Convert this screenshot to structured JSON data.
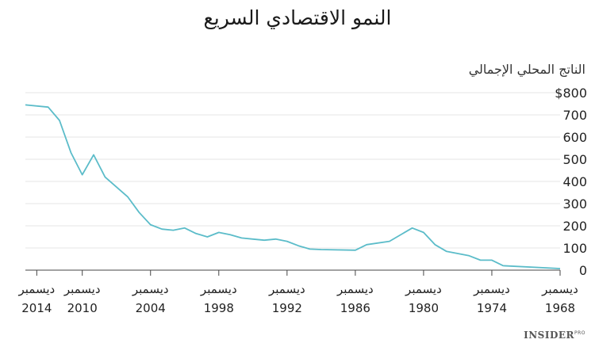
{
  "chart_data": {
    "type": "line",
    "title": "النمو الاقتصادي السريع",
    "ylabel": "الناتج المحلي الإجمالي",
    "xlabel": "",
    "x_reversed": true,
    "ylim": [
      0,
      800
    ],
    "xlim": [
      1968,
      2015
    ],
    "y_ticks": [
      {
        "value": 800,
        "label": "$800"
      },
      {
        "value": 700,
        "label": "700"
      },
      {
        "value": 600,
        "label": "600"
      },
      {
        "value": 500,
        "label": "500"
      },
      {
        "value": 400,
        "label": "400"
      },
      {
        "value": 300,
        "label": "300"
      },
      {
        "value": 200,
        "label": "200"
      },
      {
        "value": 100,
        "label": "100"
      },
      {
        "value": 0,
        "label": "0"
      }
    ],
    "x_ticks": [
      {
        "value": 2014,
        "month": "ديسمبر",
        "year": "2014"
      },
      {
        "value": 2010,
        "month": "ديسمبر",
        "year": "2010"
      },
      {
        "value": 2004,
        "month": "ديسمبر",
        "year": "2004"
      },
      {
        "value": 1998,
        "month": "ديسمبر",
        "year": "1998"
      },
      {
        "value": 1992,
        "month": "ديسمبر",
        "year": "1992"
      },
      {
        "value": 1986,
        "month": "ديسمبر",
        "year": "1986"
      },
      {
        "value": 1980,
        "month": "ديسمبر",
        "year": "1980"
      },
      {
        "value": 1974,
        "month": "ديسمبر",
        "year": "1974"
      },
      {
        "value": 1968,
        "month": "ديسمبر",
        "year": "1968"
      }
    ],
    "grid": true,
    "line_color": "#5bbcc9",
    "series": [
      {
        "x": [
          2015,
          2013,
          2012,
          2011,
          2010,
          2009,
          2008,
          2006,
          2005,
          2004,
          2003,
          2002,
          2001,
          2000,
          1999,
          1998,
          1997,
          1996,
          1995,
          1994,
          1993,
          1992,
          1991,
          1990,
          1989,
          1986,
          1985,
          1983,
          1981,
          1980,
          1979,
          1978,
          1976,
          1975,
          1974,
          1973,
          1968
        ],
        "y": [
          745,
          735,
          675,
          530,
          430,
          520,
          420,
          330,
          260,
          205,
          185,
          180,
          190,
          165,
          150,
          170,
          160,
          145,
          140,
          135,
          140,
          130,
          110,
          95,
          93,
          90,
          115,
          130,
          190,
          170,
          115,
          85,
          65,
          45,
          45,
          20,
          7
        ]
      }
    ]
  },
  "brand": {
    "name": "INSIDER",
    "suffix": "PRO"
  }
}
